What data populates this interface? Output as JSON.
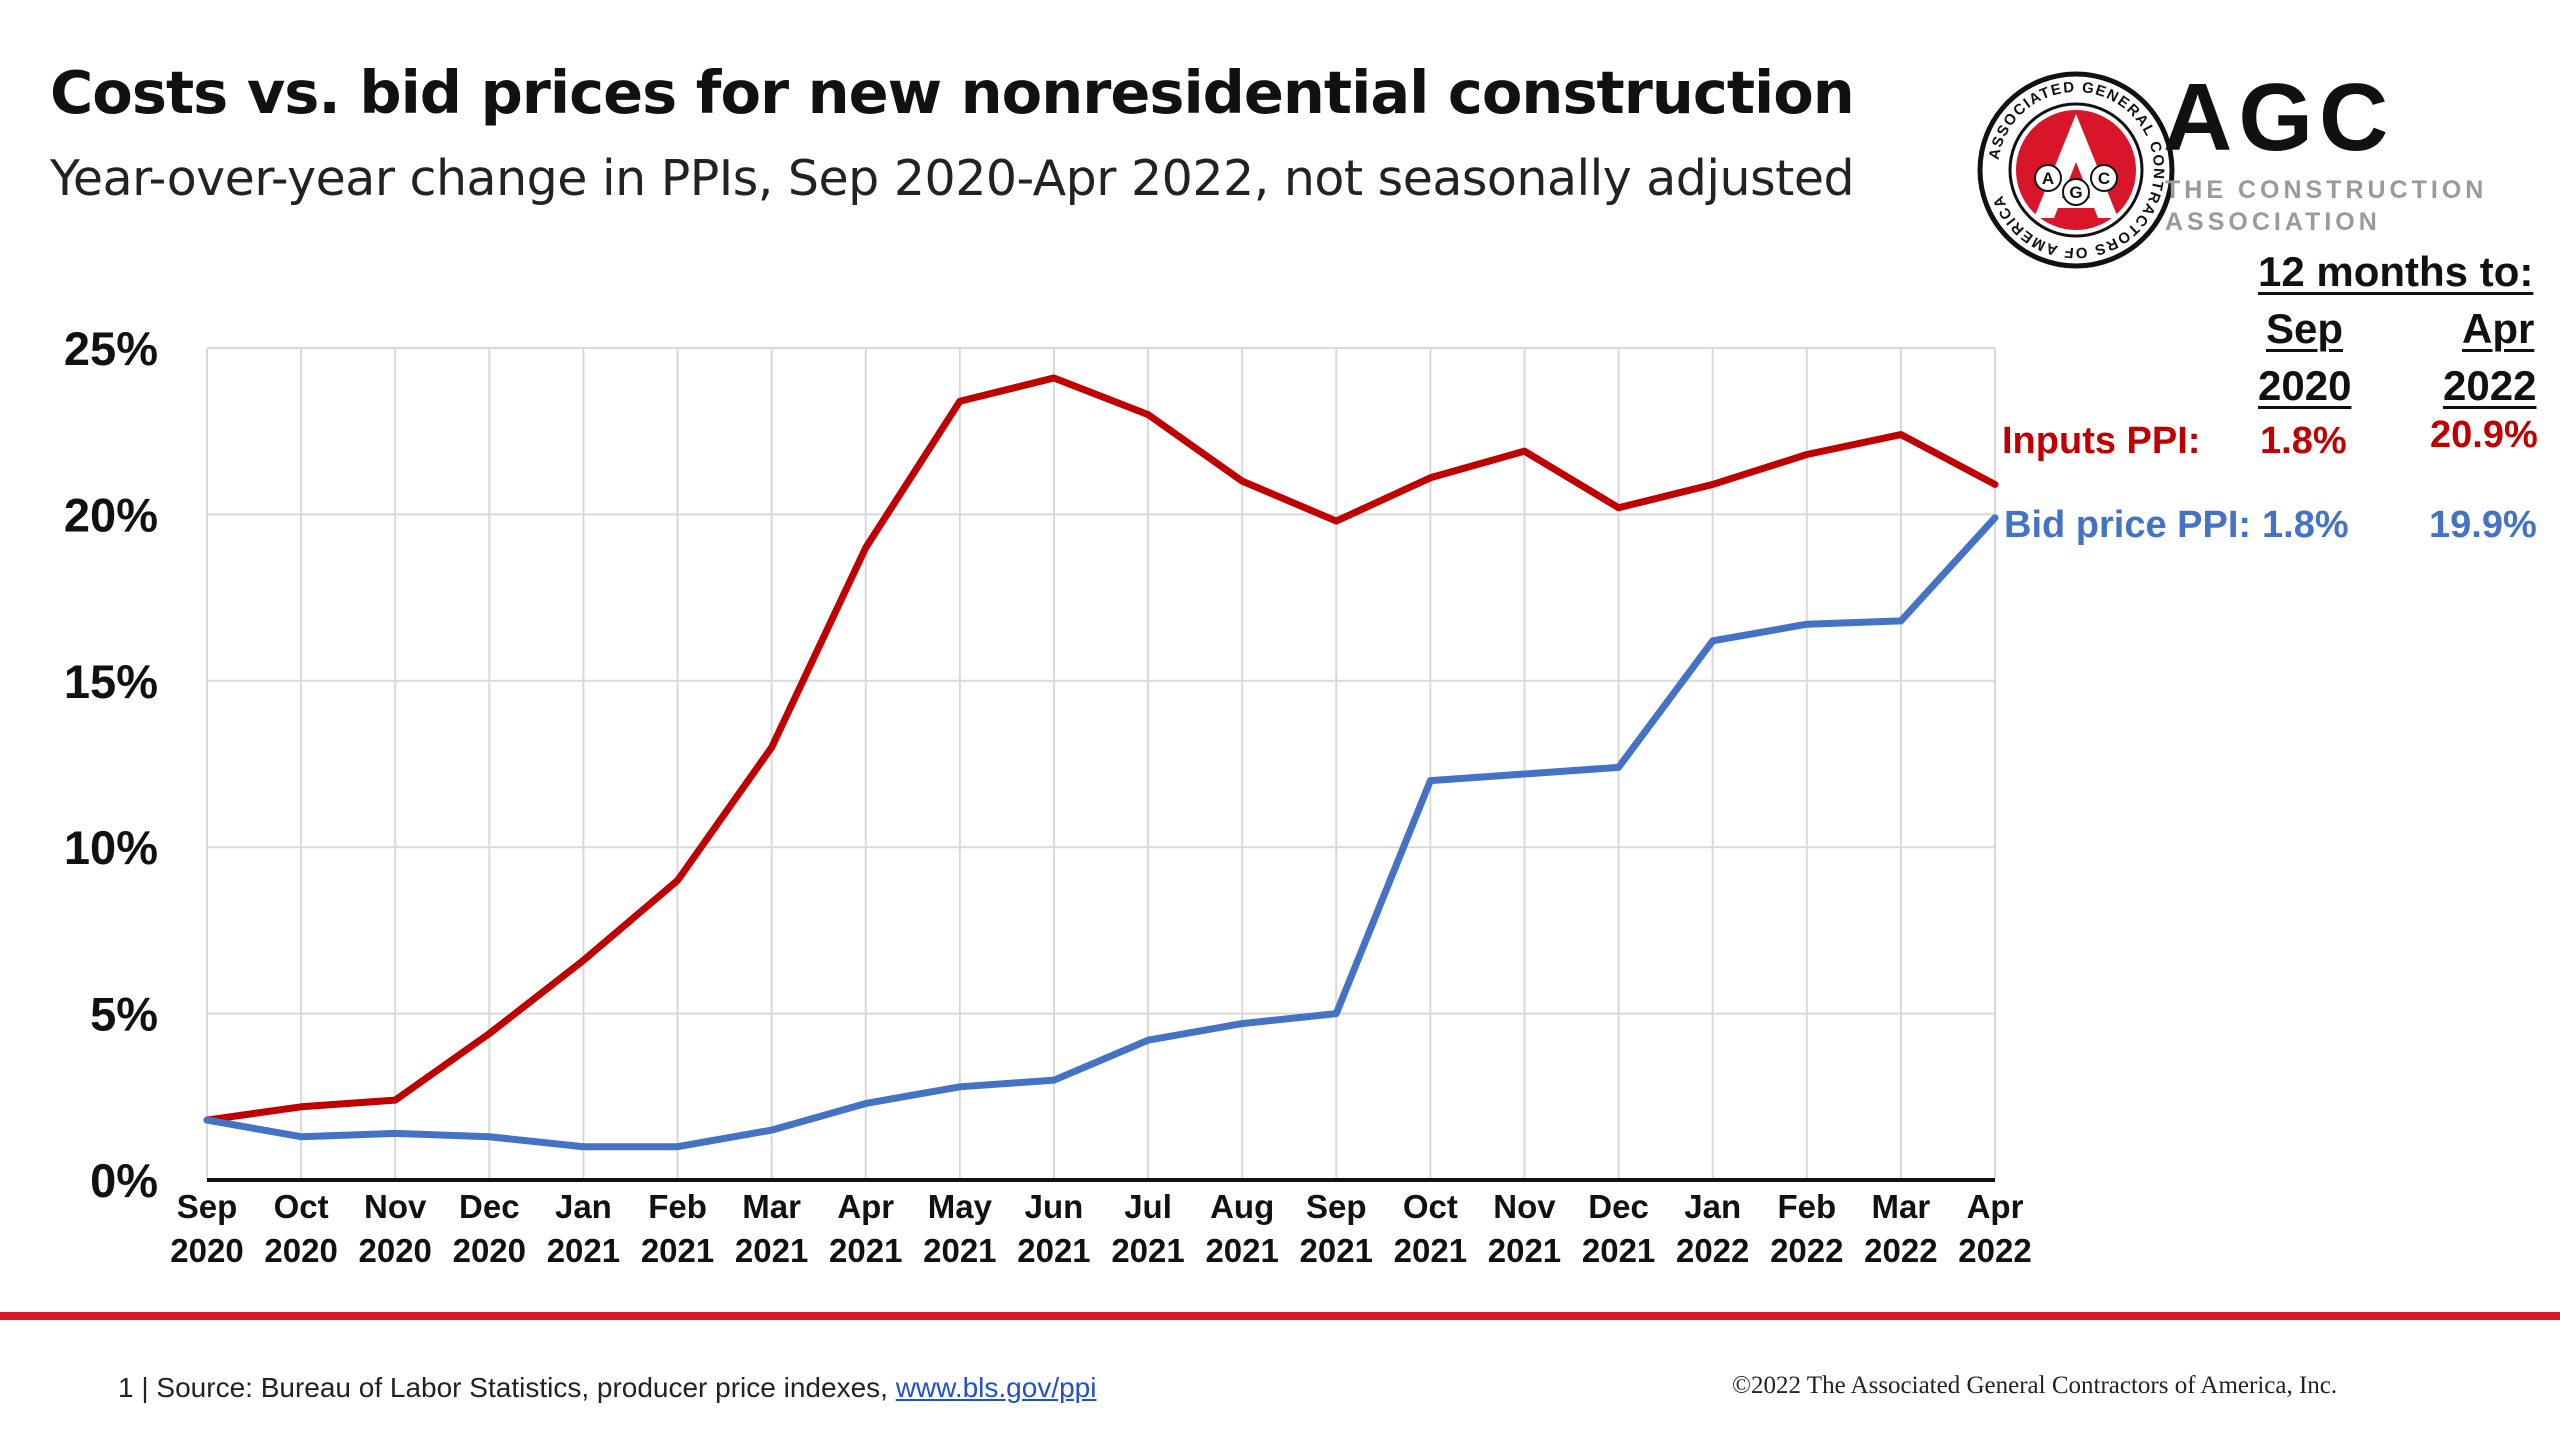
{
  "title": "Costs vs. bid prices for new nonresidential construction",
  "subtitle": "Year-over-year change in PPIs, Sep 2020-Apr 2022, not seasonally adjusted",
  "logo": {
    "seal_text": "ASSOCIATED GENERAL CONTRACTORS OF AMERICA",
    "seal_letters": [
      "A",
      "G",
      "C"
    ],
    "big_text": "AGC",
    "tagline_line1": "THE CONSTRUCTION",
    "tagline_line2": "ASSOCIATION"
  },
  "side_table": {
    "header": "12 months to:",
    "col1_month": "Sep",
    "col1_year": "2020",
    "col2_month": "Apr",
    "col2_year": "2022",
    "rows": [
      {
        "label": "Inputs PPI:",
        "val1": "1.8%",
        "val2": "20.9%",
        "color": "#c00000"
      },
      {
        "label": "Bid price PPI:",
        "val1": "1.8%",
        "val2": "19.9%",
        "color": "#4472c4"
      }
    ]
  },
  "footer": {
    "page_number": "1",
    "source_text": "Source: Bureau of Labor Statistics, producer price indexes,",
    "source_link": "www.bls.gov/ppi",
    "copyright": "©2022 The Associated General Contractors of America, Inc."
  },
  "chart_data": {
    "type": "line",
    "x": [
      "Sep 2020",
      "Oct 2020",
      "Nov 2020",
      "Dec 2020",
      "Jan 2021",
      "Feb 2021",
      "Mar 2021",
      "Apr 2021",
      "May 2021",
      "Jun 2021",
      "Jul 2021",
      "Aug 2021",
      "Sep 2021",
      "Oct 2021",
      "Nov 2021",
      "Dec 2021",
      "Jan 2022",
      "Feb 2022",
      "Mar 2022",
      "Apr 2022"
    ],
    "x_tick_labels": [
      [
        "Sep",
        "2020"
      ],
      [
        "Oct",
        "2020"
      ],
      [
        "Nov",
        "2020"
      ],
      [
        "Dec",
        "2020"
      ],
      [
        "Jan",
        "2021"
      ],
      [
        "Feb",
        "2021"
      ],
      [
        "Mar",
        "2021"
      ],
      [
        "Apr",
        "2021"
      ],
      [
        "May",
        "2021"
      ],
      [
        "Jun",
        "2021"
      ],
      [
        "Jul",
        "2021"
      ],
      [
        "Aug",
        "2021"
      ],
      [
        "Sep",
        "2021"
      ],
      [
        "Oct",
        "2021"
      ],
      [
        "Nov",
        "2021"
      ],
      [
        "Dec",
        "2021"
      ],
      [
        "Jan",
        "2022"
      ],
      [
        "Feb",
        "2022"
      ],
      [
        "Mar",
        "2022"
      ],
      [
        "Apr",
        "2022"
      ]
    ],
    "series": [
      {
        "color": "#c00000",
        "values": [
          1.8,
          2.2,
          2.4,
          4.4,
          6.6,
          9.0,
          13.0,
          19.0,
          23.4,
          24.1,
          23.0,
          21.0,
          19.8,
          21.1,
          21.9,
          20.2,
          20.9,
          21.8,
          22.4,
          20.9
        ]
      },
      {
        "color": "#4472c4",
        "values": [
          1.8,
          1.3,
          1.4,
          1.3,
          1.0,
          1.0,
          1.5,
          2.3,
          2.8,
          3.0,
          4.2,
          4.7,
          5.0,
          12.0,
          12.2,
          12.4,
          16.2,
          16.7,
          16.8,
          19.9
        ]
      }
    ],
    "y_ticks": [
      0,
      5,
      10,
      15,
      20,
      25
    ],
    "y_tick_labels": [
      "0%",
      "5%",
      "10%",
      "15%",
      "20%",
      "25%"
    ],
    "ylim": [
      0,
      25
    ],
    "grid": true,
    "legend": "none"
  }
}
